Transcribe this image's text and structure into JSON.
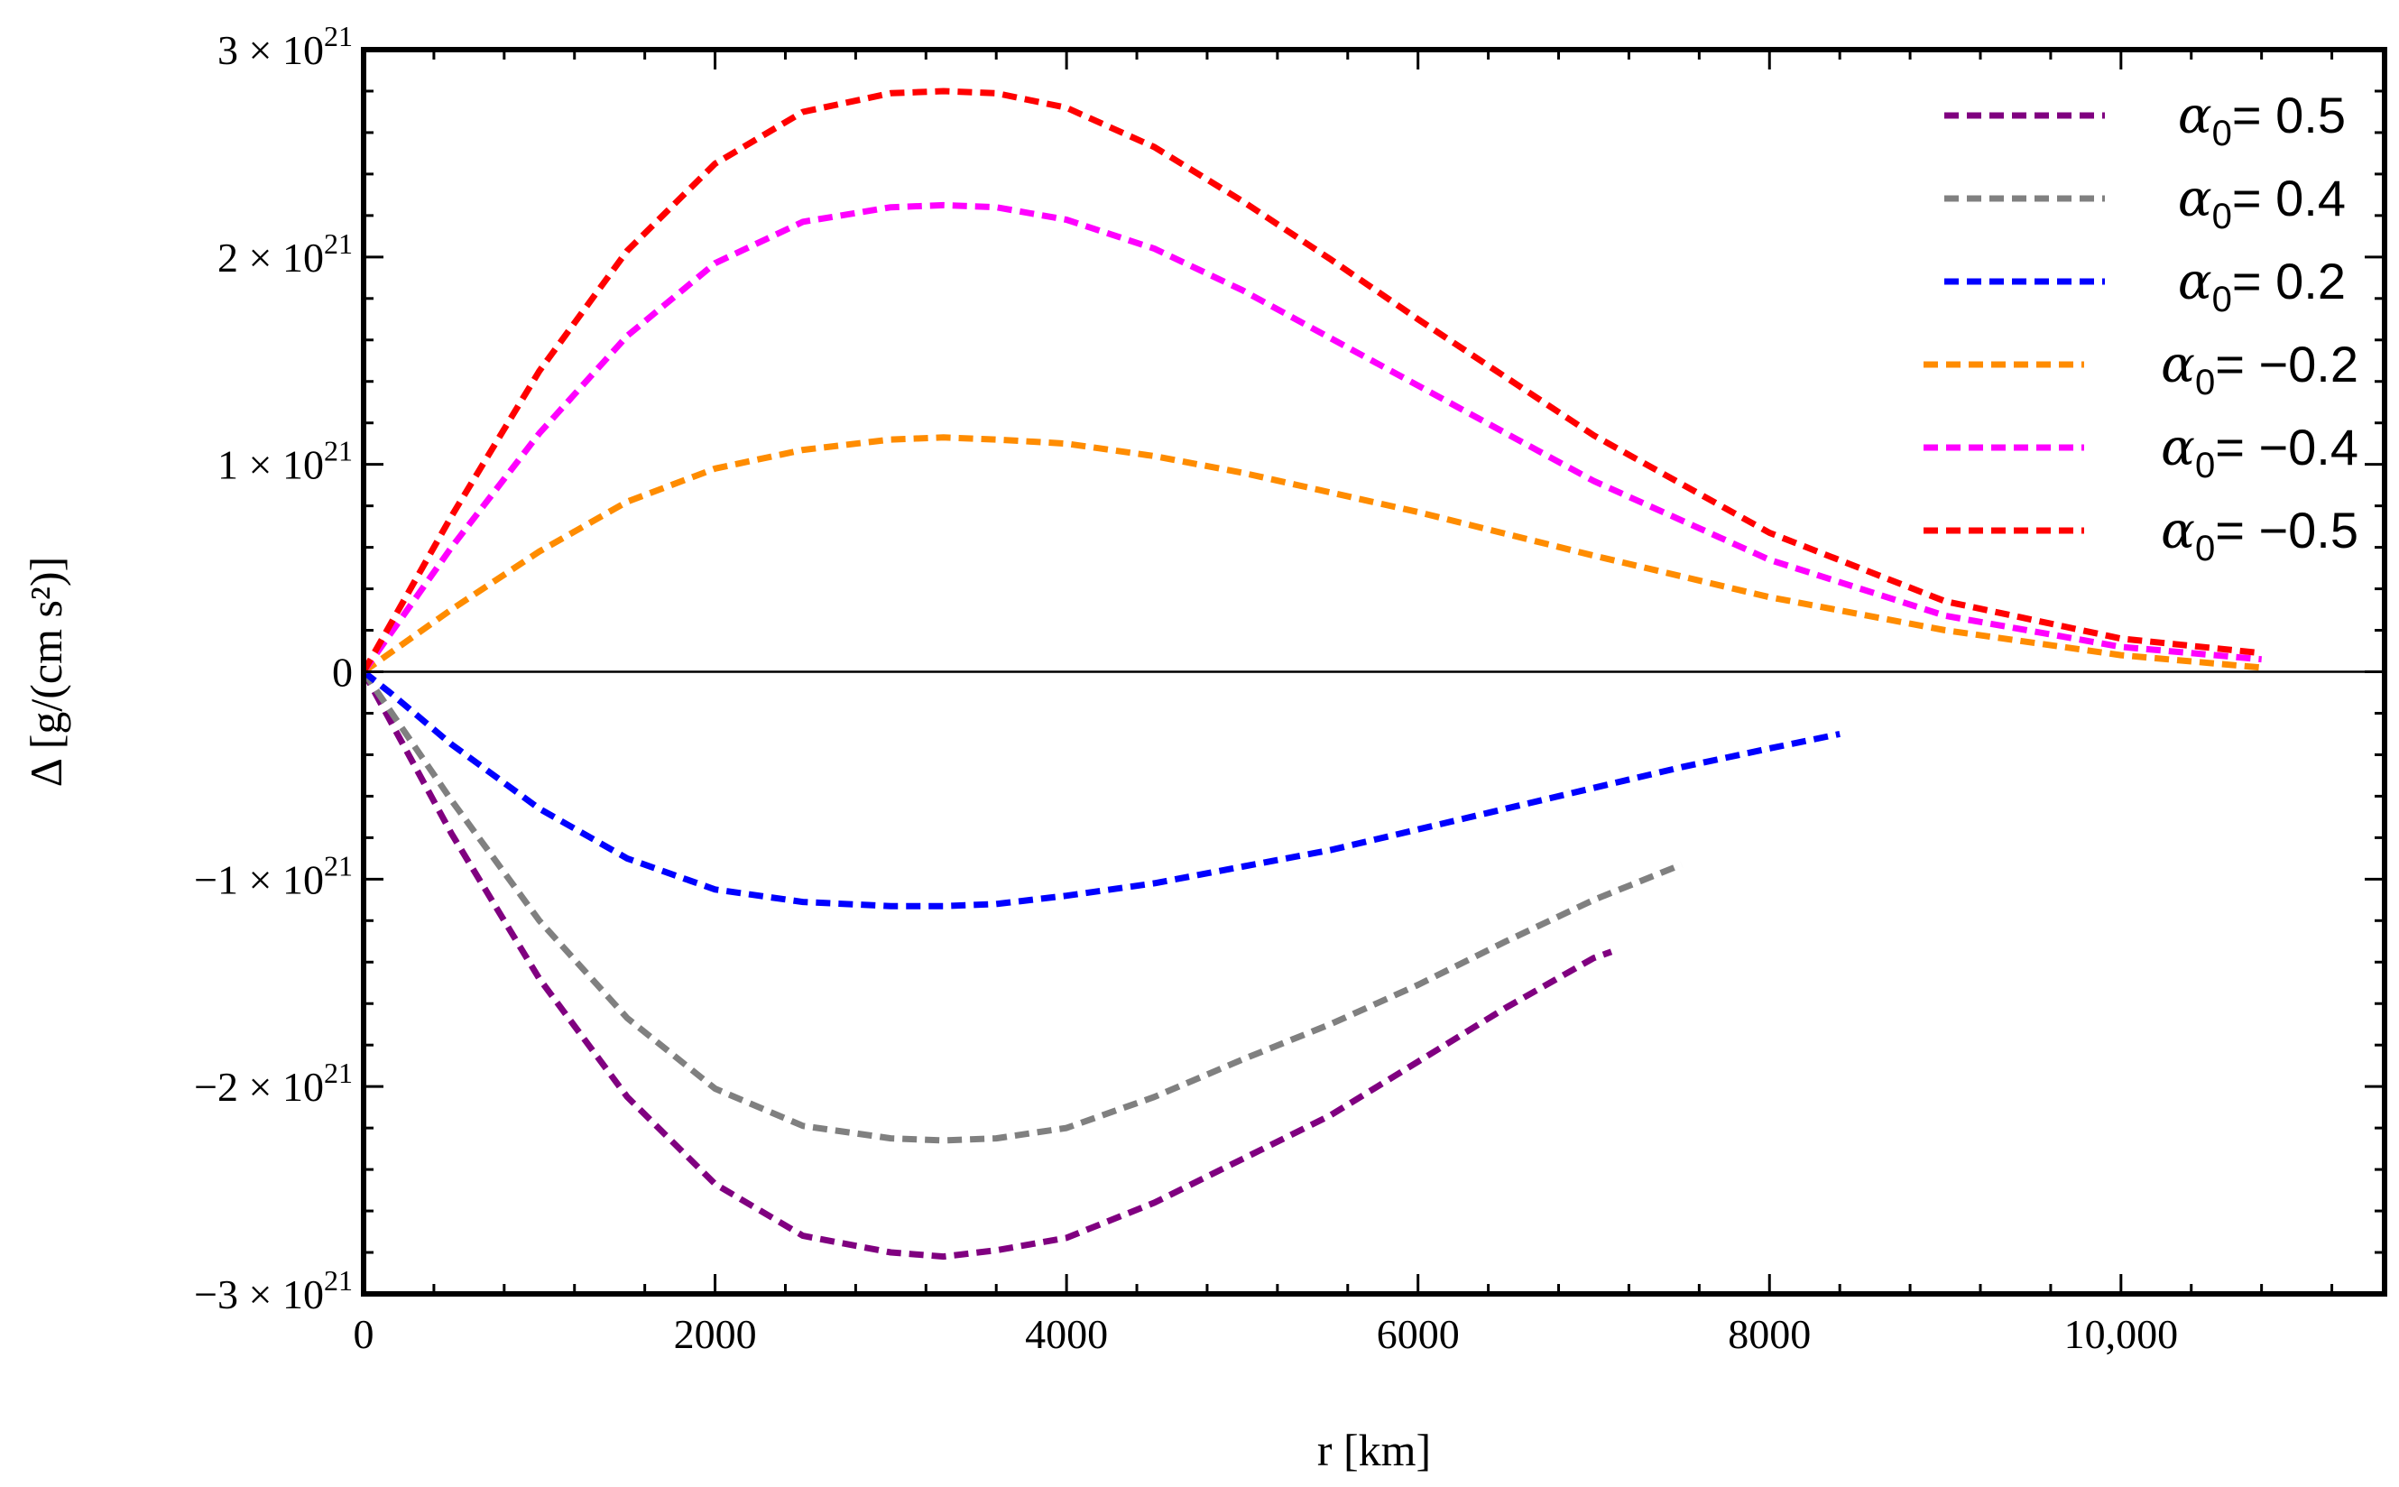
{
  "chart_data": {
    "type": "line",
    "xlabel": "r [km]",
    "ylabel": "Δ [g/(cm s²)]",
    "xlim": [
      0,
      11500
    ],
    "ylim": [
      -3e+21,
      3e+21
    ],
    "grid": false,
    "legend_position": "top-right",
    "x_ticks": [
      {
        "value": 0,
        "label": "0"
      },
      {
        "value": 2000,
        "label": "2000"
      },
      {
        "value": 4000,
        "label": "4000"
      },
      {
        "value": 6000,
        "label": "6000"
      },
      {
        "value": 8000,
        "label": "8000"
      },
      {
        "value": 10000,
        "label": "10,000"
      }
    ],
    "y_ticks": [
      {
        "value": 3e+21,
        "sign": "",
        "mantissa": "3",
        "base": "10",
        "exp": "21"
      },
      {
        "value": 2e+21,
        "sign": "",
        "mantissa": "2",
        "base": "10",
        "exp": "21"
      },
      {
        "value": 1e+21,
        "sign": "",
        "mantissa": "1",
        "base": "10",
        "exp": "21"
      },
      {
        "value": 0,
        "sign": "",
        "mantissa": "0",
        "base": "",
        "exp": ""
      },
      {
        "value": -1e+21,
        "sign": "−",
        "mantissa": "1",
        "base": "10",
        "exp": "21"
      },
      {
        "value": -2e+21,
        "sign": "−",
        "mantissa": "2",
        "base": "10",
        "exp": "21"
      },
      {
        "value": -3e+21,
        "sign": "−",
        "mantissa": "3",
        "base": "10",
        "exp": "21"
      }
    ],
    "series": [
      {
        "name": "α0 = 0.5",
        "symbol": "α",
        "subscript": "0",
        "value_text": "= 0.5",
        "color": "#800080",
        "x": [
          0,
          500,
          1000,
          1500,
          2000,
          2500,
          3000,
          3300,
          3600,
          4000,
          4500,
          5000,
          5500,
          6000,
          6500,
          7000,
          7100
        ],
        "y": [
          0,
          -7.8e+20,
          -1.48e+21,
          -2.05e+21,
          -2.47e+21,
          -2.72e+21,
          -2.8e+21,
          -2.82e+21,
          -2.79e+21,
          -2.73e+21,
          -2.56e+21,
          -2.35e+21,
          -2.14e+21,
          -1.88e+21,
          -1.62e+21,
          -1.38e+21,
          -1.35e+21
        ]
      },
      {
        "name": "α0 = 0.4",
        "symbol": "α",
        "subscript": "0",
        "value_text": "= 0.4",
        "color": "#808080",
        "x": [
          0,
          500,
          1000,
          1500,
          2000,
          2500,
          3000,
          3300,
          3600,
          4000,
          4500,
          5000,
          5500,
          6000,
          6500,
          7000,
          7500
        ],
        "y": [
          0,
          -6.2e+20,
          -1.2e+21,
          -1.67e+21,
          -2.01e+21,
          -2.19e+21,
          -2.25e+21,
          -2.26e+21,
          -2.25e+21,
          -2.2e+21,
          -2.05e+21,
          -1.87e+21,
          -1.7e+21,
          -1.51e+21,
          -1.3e+21,
          -1.1e+21,
          -9.3e+20
        ]
      },
      {
        "name": "α0 = 0.2",
        "symbol": "α",
        "subscript": "0",
        "value_text": "= 0.2",
        "color": "#0000ff",
        "x": [
          0,
          150,
          500,
          1000,
          1500,
          2000,
          2500,
          3000,
          3300,
          3600,
          4000,
          4500,
          5000,
          5500,
          6000,
          6500,
          7000,
          7500,
          8000,
          8400
        ],
        "y": [
          0,
          -1e+20,
          -3.5e+20,
          -6.6e+20,
          -9e+20,
          -1.05e+21,
          -1.11e+21,
          -1.13e+21,
          -1.13e+21,
          -1.12e+21,
          -1.08e+21,
          -1.02e+21,
          -9.4e+20,
          -8.6e+20,
          -7.6e+20,
          -6.6e+20,
          -5.6e+20,
          -4.6e+20,
          -3.7e+20,
          -3e+20
        ]
      },
      {
        "name": "α0 = −0.2",
        "symbol": "α",
        "subscript": "0",
        "value_text": "= −0.2",
        "color": "#ff8c00",
        "x": [
          0,
          500,
          1000,
          1500,
          2000,
          2500,
          3000,
          3300,
          3600,
          4000,
          4500,
          5000,
          6000,
          7000,
          8000,
          9000,
          10000,
          10800
        ],
        "y": [
          0,
          3e+20,
          5.8e+20,
          8.2e+20,
          9.8e+20,
          1.07e+21,
          1.12e+21,
          1.13e+21,
          1.12e+21,
          1.1e+21,
          1.04e+21,
          9.6e+20,
          7.7e+20,
          5.6e+20,
          3.6e+20,
          2e+20,
          8e+19,
          2e+19
        ]
      },
      {
        "name": "α0 = −0.4",
        "symbol": "α",
        "subscript": "0",
        "value_text": "= −0.4",
        "color": "#ff00ff",
        "x": [
          0,
          500,
          1000,
          1500,
          2000,
          2500,
          3000,
          3300,
          3600,
          4000,
          4500,
          5000,
          5500,
          6000,
          7000,
          8000,
          9000,
          10000,
          10800
        ],
        "y": [
          0,
          6e+20,
          1.15e+21,
          1.62e+21,
          1.97e+21,
          2.17e+21,
          2.24e+21,
          2.25e+21,
          2.24e+21,
          2.18e+21,
          2.04e+21,
          1.84e+21,
          1.61e+21,
          1.38e+21,
          9.2e+20,
          5.4e+20,
          2.7e+20,
          1.2e+20,
          6e+19
        ]
      },
      {
        "name": "α0 = −0.5",
        "symbol": "α",
        "subscript": "0",
        "value_text": "= −0.5",
        "color": "#ff0000",
        "x": [
          0,
          500,
          1000,
          1500,
          2000,
          2500,
          3000,
          3300,
          3600,
          4000,
          4500,
          5000,
          5500,
          6000,
          7000,
          8000,
          9000,
          10000,
          10800
        ],
        "y": [
          0,
          7.5e+20,
          1.45e+21,
          2.03e+21,
          2.45e+21,
          2.7e+21,
          2.79e+21,
          2.8e+21,
          2.79e+21,
          2.72e+21,
          2.53e+21,
          2.27e+21,
          1.99e+21,
          1.7e+21,
          1.14e+21,
          6.7e+20,
          3.4e+20,
          1.6e+20,
          9e+19
        ]
      }
    ]
  }
}
